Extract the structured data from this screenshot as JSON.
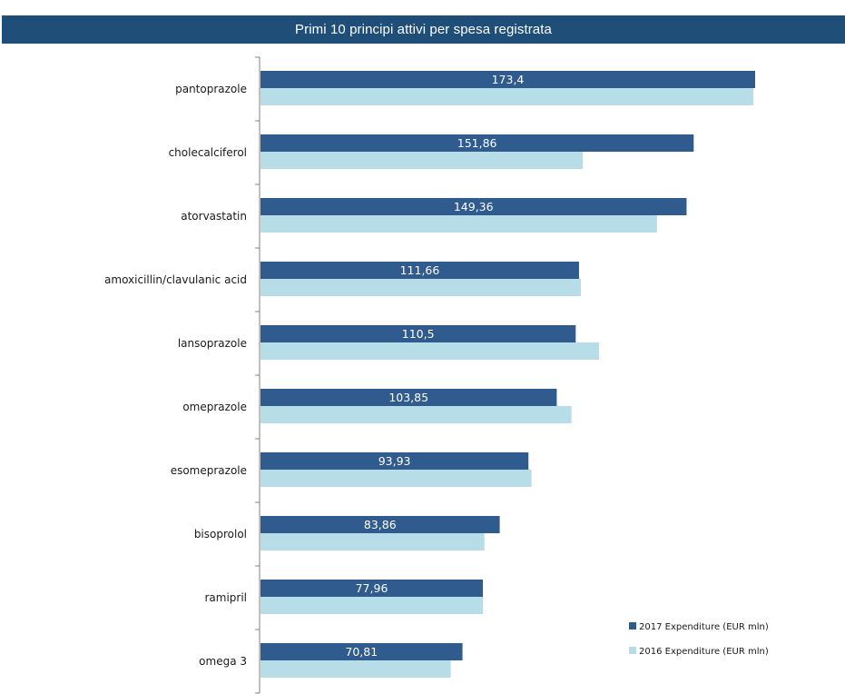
{
  "header": {
    "title": "Primi 10 principi attivi per spesa registrata"
  },
  "colors": {
    "title_bg": "#1f4e79",
    "series_2017": "#2f5b8e",
    "series_2016": "#b7dde8",
    "axis": "#808080"
  },
  "chart_data": {
    "type": "bar",
    "orientation": "horizontal",
    "title": "Primi 10 principi attivi per spesa registrata",
    "categories": [
      "pantoprazole",
      "cholecalciferol",
      "atorvastatin",
      "amoxicillin/clavulanic acid",
      "lansoprazole",
      "omeprazole",
      "esomeprazole",
      "bisoprolol",
      "ramipril",
      "omega 3"
    ],
    "series": [
      {
        "name": "2017 Expenditure (EUR mln)",
        "values": [
          173.4,
          151.86,
          149.36,
          111.66,
          110.5,
          103.85,
          93.93,
          83.86,
          77.96,
          70.81
        ],
        "value_labels": [
          "173,4",
          "151,86",
          "149,36",
          "111,66",
          "110,5",
          "103,85",
          "93,93",
          "83,86",
          "77,96",
          "70,81"
        ]
      },
      {
        "name": "2016 Expenditure (EUR mln)",
        "values": [
          172.8,
          113.0,
          139.0,
          112.3,
          118.7,
          109.0,
          95.0,
          78.5,
          78.0,
          66.7
        ]
      }
    ],
    "xlim": [
      0,
      180
    ],
    "xlabel": "",
    "ylabel": "",
    "grid": false,
    "legend_position": "bottom-right"
  }
}
